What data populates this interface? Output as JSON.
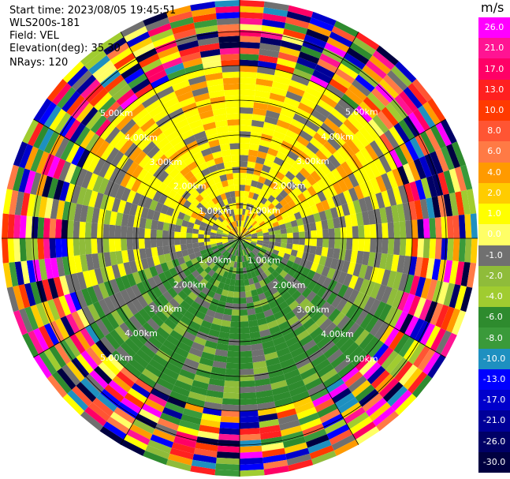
{
  "header": {
    "start_time": "Start time: 2023/08/05 19:45:51",
    "instrument": "WLS200s-181",
    "field": "Field: VEL",
    "elevation": "Elevation(deg): 35.30",
    "nrays": "NRays: 120"
  },
  "plot": {
    "ring_labels": [
      "1.00km",
      "2.00km",
      "3.00km",
      "4.00km",
      "5.00km"
    ]
  },
  "colorbar": {
    "unit": "m/s",
    "ticks": [
      "26.0",
      "21.0",
      "17.0",
      "13.0",
      "10.0",
      "8.0",
      "6.0",
      "4.0",
      "2.0",
      "1.0",
      "0.0",
      "-1.0",
      "-2.0",
      "-4.0",
      "-6.0",
      "-8.0",
      "-10.0",
      "-13.0",
      "-17.0",
      "-21.0",
      "-26.0",
      "-30.0"
    ],
    "colors": [
      "#ff00ff",
      "#ff1493",
      "#ff0066",
      "#ff2020",
      "#ff3a00",
      "#ff5533",
      "#ff7a45",
      "#ff9a00",
      "#ffcc00",
      "#ffff00",
      "#ffff66",
      "#707070",
      "#8fbc3a",
      "#a0cc30",
      "#2e8b2e",
      "#3a9a3a",
      "#1e90c0",
      "#0000ff",
      "#0000cc",
      "#000099",
      "#000066",
      "#000040"
    ]
  }
}
